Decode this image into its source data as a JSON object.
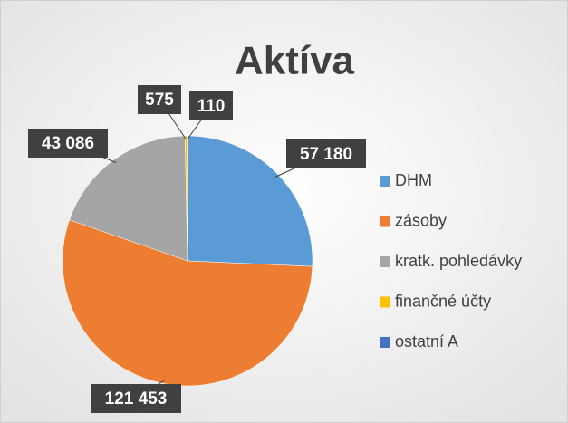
{
  "chart_data": {
    "type": "pie",
    "title": "Aktíva",
    "categories": [
      "DHM",
      "zásoby",
      "kratk. pohledávky",
      "finančné účty",
      "ostatní A"
    ],
    "values": [
      57180,
      121453,
      43086,
      575,
      110
    ],
    "value_labels": [
      "57 180",
      "121 453",
      "43 086",
      "575",
      "110"
    ],
    "colors": [
      "#5b9bd5",
      "#ed7d31",
      "#a5a5a5",
      "#ffc000",
      "#4472c4"
    ],
    "legend": "right"
  }
}
